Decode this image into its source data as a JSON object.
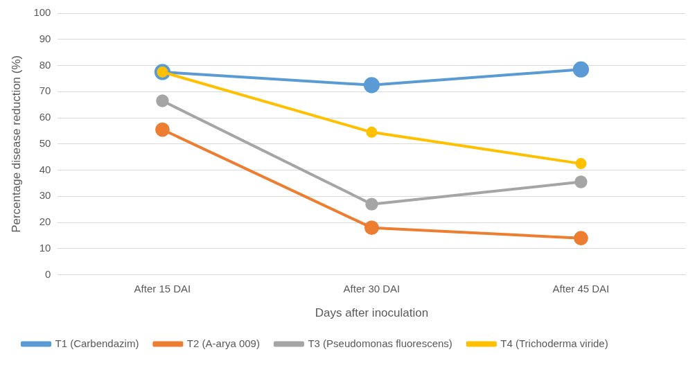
{
  "chart_data": {
    "type": "line",
    "xlabel": "Days after inoculation",
    "ylabel": "Percentage disease reduction (%)",
    "categories": [
      "After 15 DAI",
      "After 30 DAI",
      "After 45 DAI"
    ],
    "series": [
      {
        "name": "T1 (Carbendazim)",
        "color": "#5b9bd5",
        "values": [
          77.5,
          72.5,
          78.5
        ]
      },
      {
        "name": "T2 (A-arya 009)",
        "color": "#ed7d31",
        "values": [
          55.5,
          18,
          14
        ]
      },
      {
        "name": "T3 (Pseudomonas fluorescens)",
        "color": "#a5a5a5",
        "values": [
          66.5,
          27,
          35.5
        ]
      },
      {
        "name": "T4 (Trichoderma viride)",
        "color": "#ffc000",
        "values": [
          77.5,
          54.5,
          42.5
        ]
      }
    ],
    "ylim": [
      0,
      100
    ],
    "yticks": [
      0,
      10,
      20,
      30,
      40,
      50,
      60,
      70,
      80,
      90,
      100
    ],
    "grid": "y",
    "legend": "bottom",
    "marker": "circle",
    "line_style": "solid"
  }
}
